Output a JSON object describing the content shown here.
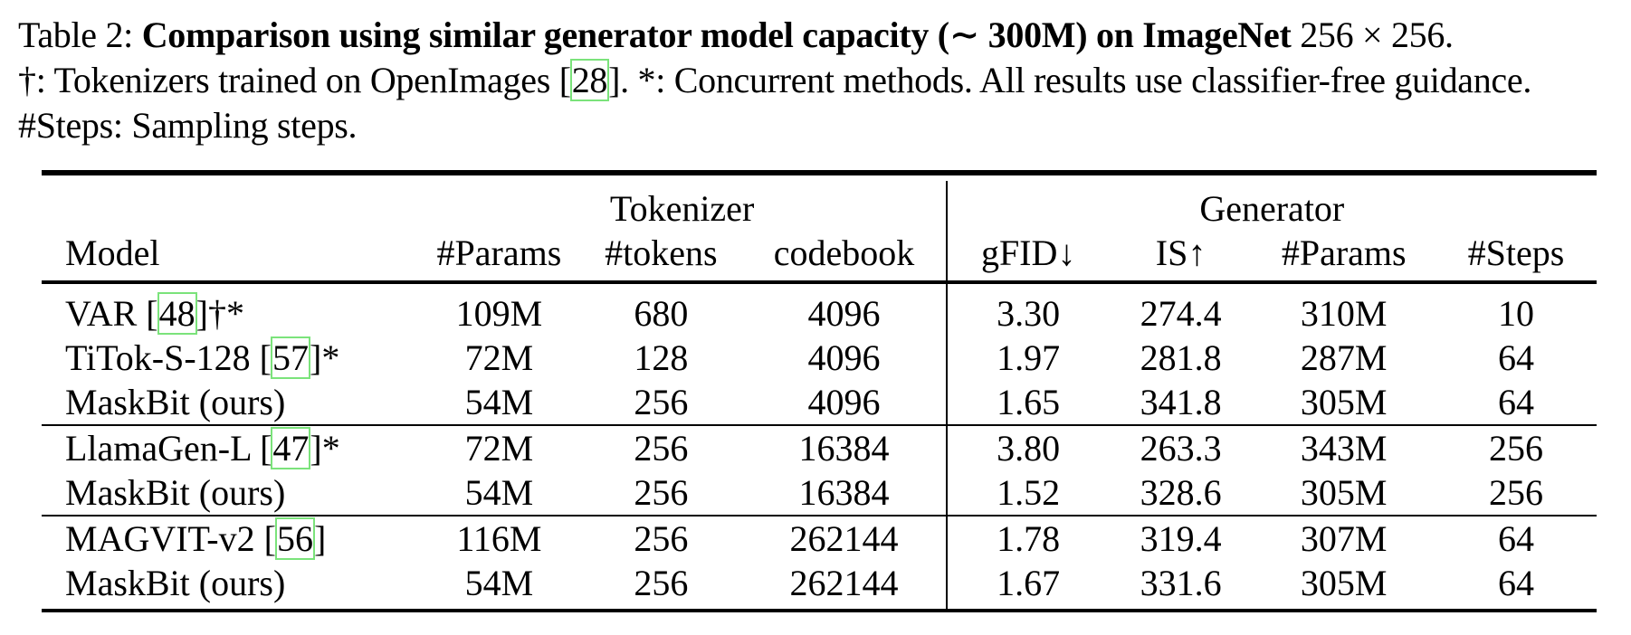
{
  "caption": {
    "label": "Table 2:",
    "title_bold": "Comparison using similar generator model capacity (∼ 300M) on ImageNet",
    "title_math": "256 × 256.",
    "line2_part1": "†: Tokenizers trained on OpenImages [",
    "line2_ref": "28",
    "line2_part2": "]. *: Concurrent methods. All results use classifier-free guidance. #Steps: Sampling steps."
  },
  "table": {
    "group_headers": {
      "tokenizer": "Tokenizer",
      "generator": "Generator"
    },
    "columns": {
      "model": "Model",
      "tok_params": "#Params",
      "tokens": "#tokens",
      "codebook": "codebook",
      "gfid": "gFID↓",
      "is": "IS↑",
      "gen_params": "#Params",
      "steps": "#Steps"
    },
    "rows": [
      {
        "name": "VAR [",
        "ref": "48",
        "suffix": "]†*",
        "tok_params": "109M",
        "tokens": "680",
        "codebook": "4096",
        "gfid": "3.30",
        "is": "274.4",
        "gen_params": "310M",
        "steps": "10"
      },
      {
        "name": "TiTok-S-128 [",
        "ref": "57",
        "suffix": "]*",
        "tok_params": "72M",
        "tokens": "128",
        "codebook": "4096",
        "gfid": "1.97",
        "is": "281.8",
        "gen_params": "287M",
        "steps": "64"
      },
      {
        "name": "MaskBit (ours)",
        "ref": "",
        "suffix": "",
        "tok_params": "54M",
        "tokens": "256",
        "codebook": "4096",
        "gfid": "1.65",
        "is": "341.8",
        "gen_params": "305M",
        "steps": "64"
      },
      {
        "name": "LlamaGen-L [",
        "ref": "47",
        "suffix": "]*",
        "tok_params": "72M",
        "tokens": "256",
        "codebook": "16384",
        "gfid": "3.80",
        "is": "263.3",
        "gen_params": "343M",
        "steps": "256"
      },
      {
        "name": "MaskBit (ours)",
        "ref": "",
        "suffix": "",
        "tok_params": "54M",
        "tokens": "256",
        "codebook": "16384",
        "gfid": "1.52",
        "is": "328.6",
        "gen_params": "305M",
        "steps": "256"
      },
      {
        "name": "MAGVIT-v2 [",
        "ref": "56",
        "suffix": "]",
        "tok_params": "116M",
        "tokens": "256",
        "codebook": "262144",
        "gfid": "1.78",
        "is": "319.4",
        "gen_params": "307M",
        "steps": "64"
      },
      {
        "name": "MaskBit (ours)",
        "ref": "",
        "suffix": "",
        "tok_params": "54M",
        "tokens": "256",
        "codebook": "262144",
        "gfid": "1.67",
        "is": "331.6",
        "gen_params": "305M",
        "steps": "64"
      }
    ]
  },
  "colors": {
    "citation_box": "#7be37b",
    "text": "#000000"
  }
}
